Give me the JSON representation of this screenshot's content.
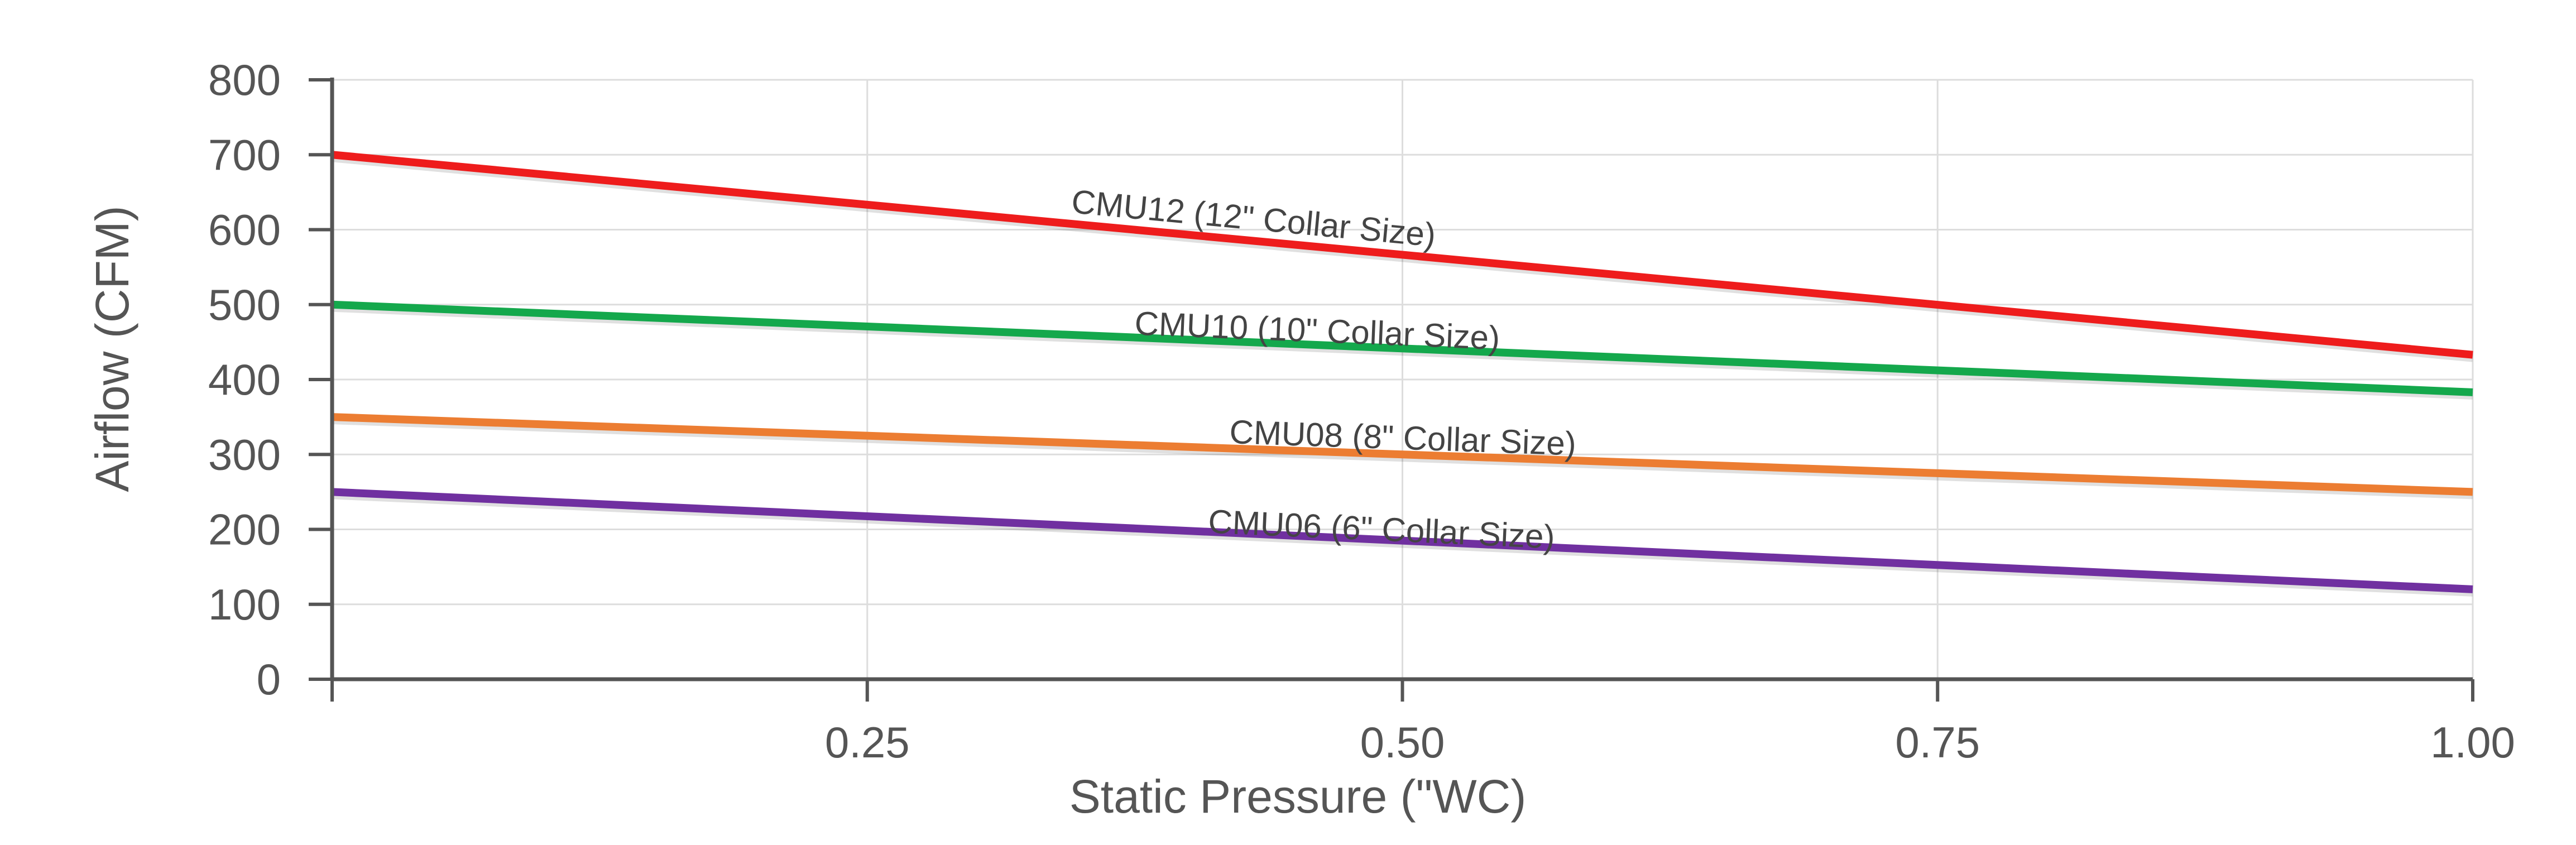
{
  "chart_data": {
    "type": "line",
    "title": "",
    "xlabel": "Static Pressure (\"WC)",
    "ylabel": "Airflow (CFM)",
    "xlim": [
      0,
      1.0
    ],
    "ylim": [
      0,
      800
    ],
    "x_ticks": [
      "0.25",
      "0.50",
      "0.75",
      "1.00"
    ],
    "x_tick_values": [
      0.25,
      0.5,
      0.75,
      1.0
    ],
    "y_ticks": [
      "0",
      "100",
      "200",
      "300",
      "400",
      "500",
      "600",
      "700",
      "800"
    ],
    "y_tick_values": [
      0,
      100,
      200,
      300,
      400,
      500,
      600,
      700,
      800
    ],
    "grid": true,
    "legend": "inline labels",
    "series": [
      {
        "name": "CMU12 (12\" Collar Size)",
        "color": "#ee1c1c",
        "x": [
          0,
          1.0
        ],
        "y": [
          700,
          433
        ],
        "label_x": 0.43,
        "label_y": 600
      },
      {
        "name": "CMU10 (10\" Collar Size)",
        "color": "#14a84c",
        "x": [
          0,
          1.0
        ],
        "y": [
          500,
          383
        ],
        "label_x": 0.46,
        "label_y": 450
      },
      {
        "name": "CMU08 (8\" Collar Size)",
        "color": "#ec7d32",
        "x": [
          0,
          1.0
        ],
        "y": [
          350,
          250
        ],
        "label_x": 0.5,
        "label_y": 307
      },
      {
        "name": "CMU06 (6\" Collar Size)",
        "color": "#7030a0",
        "x": [
          0,
          1.0
        ],
        "y": [
          250,
          120
        ],
        "label_x": 0.49,
        "label_y": 185
      }
    ]
  }
}
